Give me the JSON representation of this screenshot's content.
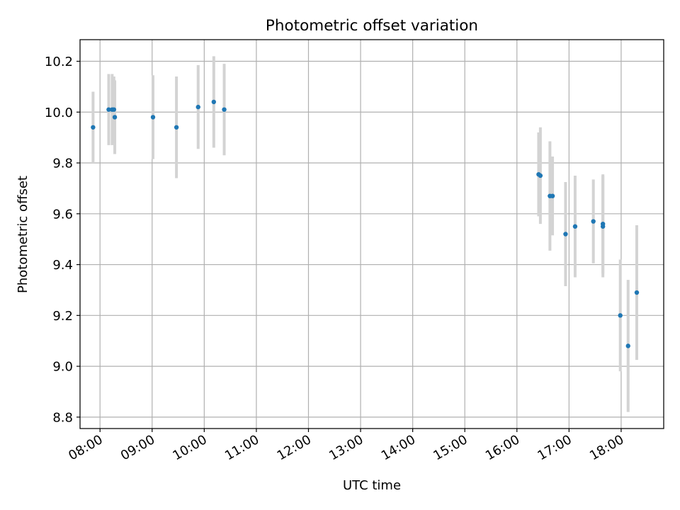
{
  "chart_data": {
    "type": "scatter",
    "title": "Photometric offset variation",
    "xlabel": "UTC time",
    "ylabel": "Photometric offset",
    "x_axis_type": "time",
    "xlim": [
      "07:37",
      "18:49"
    ],
    "ylim": [
      8.755,
      10.285
    ],
    "grid": true,
    "x_ticks": [
      "08:00",
      "09:00",
      "10:00",
      "11:00",
      "12:00",
      "13:00",
      "14:00",
      "15:00",
      "16:00",
      "17:00",
      "18:00"
    ],
    "y_ticks": [
      8.8,
      9.0,
      9.2,
      9.4,
      9.6,
      9.8,
      10.0,
      10.2
    ],
    "y_tick_labels": [
      "8.8",
      "9.0",
      "9.2",
      "9.4",
      "9.6",
      "9.8",
      "10.0",
      "10.2"
    ],
    "marker_color": "#1f77b4",
    "errorbar_color": "#d3d3d3",
    "points": [
      {
        "time": "07:52",
        "y": 9.94,
        "yerr": 0.14
      },
      {
        "time": "08:10",
        "y": 10.01,
        "yerr": 0.14
      },
      {
        "time": "08:14",
        "y": 10.01,
        "yerr": 0.14
      },
      {
        "time": "08:16",
        "y": 10.01,
        "yerr": 0.13
      },
      {
        "time": "08:17",
        "y": 9.98,
        "yerr": 0.145
      },
      {
        "time": "09:01",
        "y": 9.98,
        "yerr": 0.165
      },
      {
        "time": "09:28",
        "y": 9.94,
        "yerr": 0.2
      },
      {
        "time": "09:53",
        "y": 10.02,
        "yerr": 0.165
      },
      {
        "time": "10:11",
        "y": 10.04,
        "yerr": 0.18
      },
      {
        "time": "10:23",
        "y": 10.01,
        "yerr": 0.18
      },
      {
        "time": "16:25",
        "y": 9.755,
        "yerr": 0.165
      },
      {
        "time": "16:27",
        "y": 9.75,
        "yerr": 0.19
      },
      {
        "time": "16:38",
        "y": 9.67,
        "yerr": 0.215
      },
      {
        "time": "16:41",
        "y": 9.67,
        "yerr": 0.155
      },
      {
        "time": "16:56",
        "y": 9.52,
        "yerr": 0.205
      },
      {
        "time": "17:07",
        "y": 9.55,
        "yerr": 0.2
      },
      {
        "time": "17:28",
        "y": 9.57,
        "yerr": 0.165
      },
      {
        "time": "17:39",
        "y": 9.56,
        "yerr": 0.195
      },
      {
        "time": "17:39",
        "y": 9.55,
        "yerr": 0.2
      },
      {
        "time": "17:59",
        "y": 9.2,
        "yerr": 0.22
      },
      {
        "time": "18:08",
        "y": 9.08,
        "yerr": 0.26
      },
      {
        "time": "18:18",
        "y": 9.29,
        "yerr": 0.265
      }
    ]
  }
}
